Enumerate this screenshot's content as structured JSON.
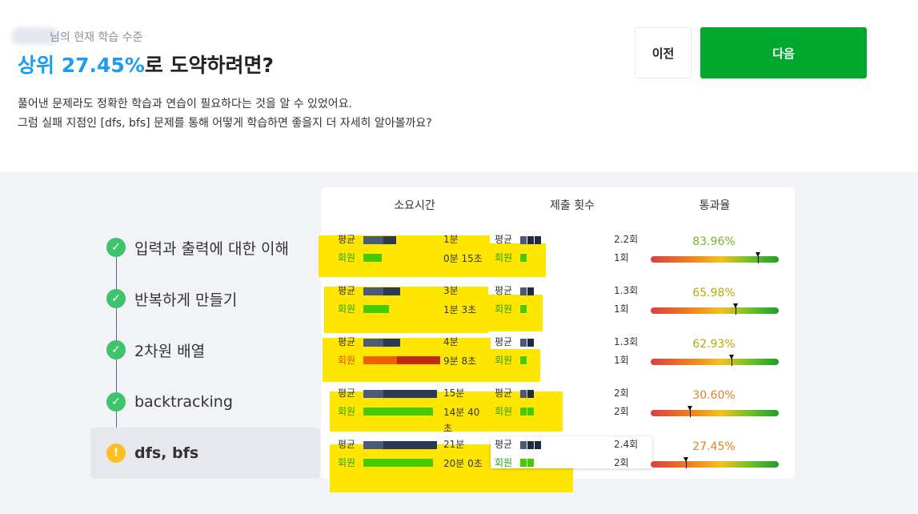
{
  "header": {
    "subtitle": "님의 현재 학습 수준",
    "title_highlight": "상위 27.45%",
    "title_rest": "로 도약하려면?",
    "desc_line1": "풀어낸 문제라도 정확한 학습과 연습이 필요하다는 것을 알 수 있었어요.",
    "desc_line2": "그럼 실패 지점인 [dfs, bfs] 문제를 통해 어떻게 학습하면 좋을지 더 자세히 알아볼까요?"
  },
  "buttons": {
    "prev": "이전",
    "next": "다음"
  },
  "table": {
    "col_time": "소요시간",
    "col_submit": "제출 횟수",
    "col_pass": "통과율"
  },
  "labels": {
    "avg": "평균",
    "member": "회원"
  },
  "steps": [
    {
      "label": "입력과 출력에 대한 이해",
      "status": "check-icon"
    },
    {
      "label": "반복하게 만들기",
      "status": "check-icon"
    },
    {
      "label": "2차원 배열",
      "status": "check-icon"
    },
    {
      "label": "backtracking",
      "status": "check-icon"
    },
    {
      "label": "dfs, bfs",
      "status": "warning-icon"
    }
  ],
  "rows": [
    {
      "avg_time": "1분",
      "member_time": "0분 15초",
      "avg_submit": "2.2회",
      "member_submit": "1회",
      "pass_rate": "83.96%",
      "pass_value": 83.96,
      "avg_time_fraction": 0.45,
      "member_time_fraction": 0.25,
      "rate_color": "#6fb82a"
    },
    {
      "avg_time": "3분",
      "member_time": "1분 3초",
      "avg_submit": "1.3회",
      "member_submit": "1회",
      "pass_rate": "65.98%",
      "pass_value": 65.98,
      "avg_time_fraction": 0.5,
      "member_time_fraction": 0.35,
      "rate_color": "#b8a800"
    },
    {
      "avg_time": "4분",
      "member_time": "9분 8초",
      "avg_submit": "1.3회",
      "member_submit": "1회",
      "pass_rate": "62.93%",
      "pass_value": 62.93,
      "avg_time_fraction": 0.5,
      "member_time_fraction": 1.0,
      "rate_color": "#b8a800"
    },
    {
      "avg_time": "15분",
      "member_time": "14분 40초",
      "avg_submit": "2회",
      "member_submit": "2회",
      "pass_rate": "30.60%",
      "pass_value": 30.6,
      "avg_time_fraction": 1.0,
      "member_time_fraction": 0.95,
      "rate_color": "#e0802a"
    },
    {
      "avg_time": "21분",
      "member_time": "20분 0초",
      "avg_submit": "2.4회",
      "member_submit": "2회",
      "pass_rate": "27.45%",
      "pass_value": 27.45,
      "avg_time_fraction": 1.0,
      "member_time_fraction": 0.95,
      "rate_color": "#e0802a"
    }
  ],
  "colors": {
    "accent": "#1d9bf0",
    "next_button": "#00a82d",
    "check": "#3ec46d",
    "warning": "#fbbf24",
    "highlight": "#ffe600"
  }
}
